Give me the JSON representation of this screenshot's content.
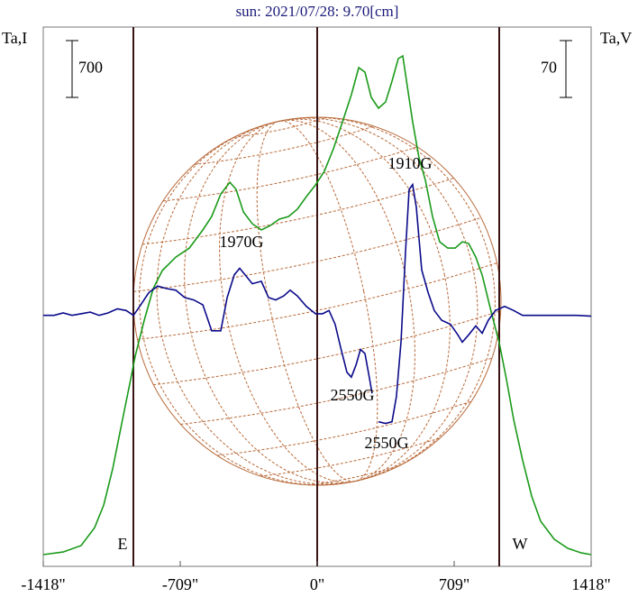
{
  "chart_data": {
    "type": "line",
    "title": "sun: 2021/07/28: 9.70[cm]",
    "ylabel": "Ta,I",
    "y2label": "Ta,V",
    "xlim": [
      -1418,
      1418
    ],
    "xticks": [
      {
        "value": -1418,
        "label": "-1418\""
      },
      {
        "value": -709,
        "label": "-709\""
      },
      {
        "value": 0,
        "label": "0\""
      },
      {
        "value": 709,
        "label": "709\""
      },
      {
        "value": 1418,
        "label": "1418\""
      }
    ],
    "ylim": [
      -144,
      6500
    ],
    "y2lim": [
      -309,
      355
    ],
    "scale_bars": [
      {
        "value": 700
      },
      {
        "value": 70,
        "axis": "y2"
      }
    ],
    "annotations": [
      "1970G",
      "1910G",
      "2550G",
      "2550G",
      "E",
      "W"
    ],
    "series": [
      {
        "color": "#1a9a1a",
        "x": [
          -1418,
          -1315,
          -1222,
          -1152,
          -1105,
          -1059,
          -1012,
          -965,
          -942,
          -895,
          -849,
          -802,
          -732,
          -662,
          -592,
          -546,
          -499,
          -452,
          -420,
          -382,
          -336,
          -289,
          -243,
          -196,
          -149,
          -103,
          -56,
          -9,
          37,
          84,
          131,
          177,
          215,
          247,
          280,
          317,
          354,
          387,
          420,
          443,
          466,
          494,
          527,
          560,
          597,
          634,
          676,
          714,
          751,
          784,
          821,
          854,
          900,
          942,
          979,
          1017,
          1063,
          1110,
          1157,
          1227,
          1297,
          1367,
          1418
        ],
        "values": [
          0,
          33,
          111,
          333,
          611,
          1055,
          1611,
          2166,
          2444,
          2889,
          3277,
          3500,
          3666,
          3777,
          4000,
          4166,
          4444,
          4588,
          4500,
          4222,
          4077,
          4000,
          4055,
          4133,
          4166,
          4255,
          4411,
          4555,
          4722,
          5000,
          5333,
          5666,
          6000,
          5944,
          5633,
          5500,
          5577,
          5833,
          6111,
          6144,
          5777,
          5333,
          4888,
          4611,
          4166,
          3855,
          3777,
          3777,
          3855,
          3833,
          3666,
          3444,
          3000,
          2611,
          2166,
          1666,
          1166,
          722,
          411,
          189,
          78,
          22,
          0
        ]
      },
      {
        "color": "#0a0a8a",
        "axis": "y2",
        "x": [
          -1418,
          -1362,
          -1315,
          -1269,
          -1222,
          -1175,
          -1129,
          -1082,
          -1035,
          -989,
          -951,
          -919,
          -872,
          -826,
          -779,
          -732,
          -686,
          -639,
          -592,
          -546,
          -499,
          -466,
          -429,
          -401,
          -373,
          -336,
          -289,
          -252,
          -215,
          -173,
          -140,
          -103,
          -56,
          -9,
          28,
          61,
          93,
          121,
          154,
          177,
          201,
          224,
          247,
          271,
          284,
          298,
          317,
          354,
          387,
          410,
          434,
          457,
          476,
          494,
          513,
          541,
          574,
          606,
          644,
          690,
          728,
          751,
          784,
          821,
          854,
          886,
          923,
          970,
          1017,
          1063,
          1157,
          1250,
          1343,
          1418
        ],
        "values": [
          0,
          0,
          3,
          0,
          2,
          4,
          0,
          3,
          8,
          6,
          0,
          11,
          28,
          36,
          33,
          31,
          22,
          19,
          13,
          -19,
          -19,
          22,
          50,
          58,
          50,
          39,
          42,
          22,
          19,
          24,
          31,
          24,
          11,
          2,
          2,
          6,
          -11,
          -39,
          -70,
          -76,
          -61,
          -42,
          -47,
          -78,
          -96,
          null,
          -131,
          -133,
          -131,
          -100,
          -33,
          78,
          155,
          161,
          133,
          56,
          28,
          6,
          -6,
          -11,
          -24,
          -33,
          -24,
          -13,
          -22,
          -6,
          6,
          11,
          6,
          0,
          0,
          0,
          0,
          -1
        ]
      }
    ]
  }
}
